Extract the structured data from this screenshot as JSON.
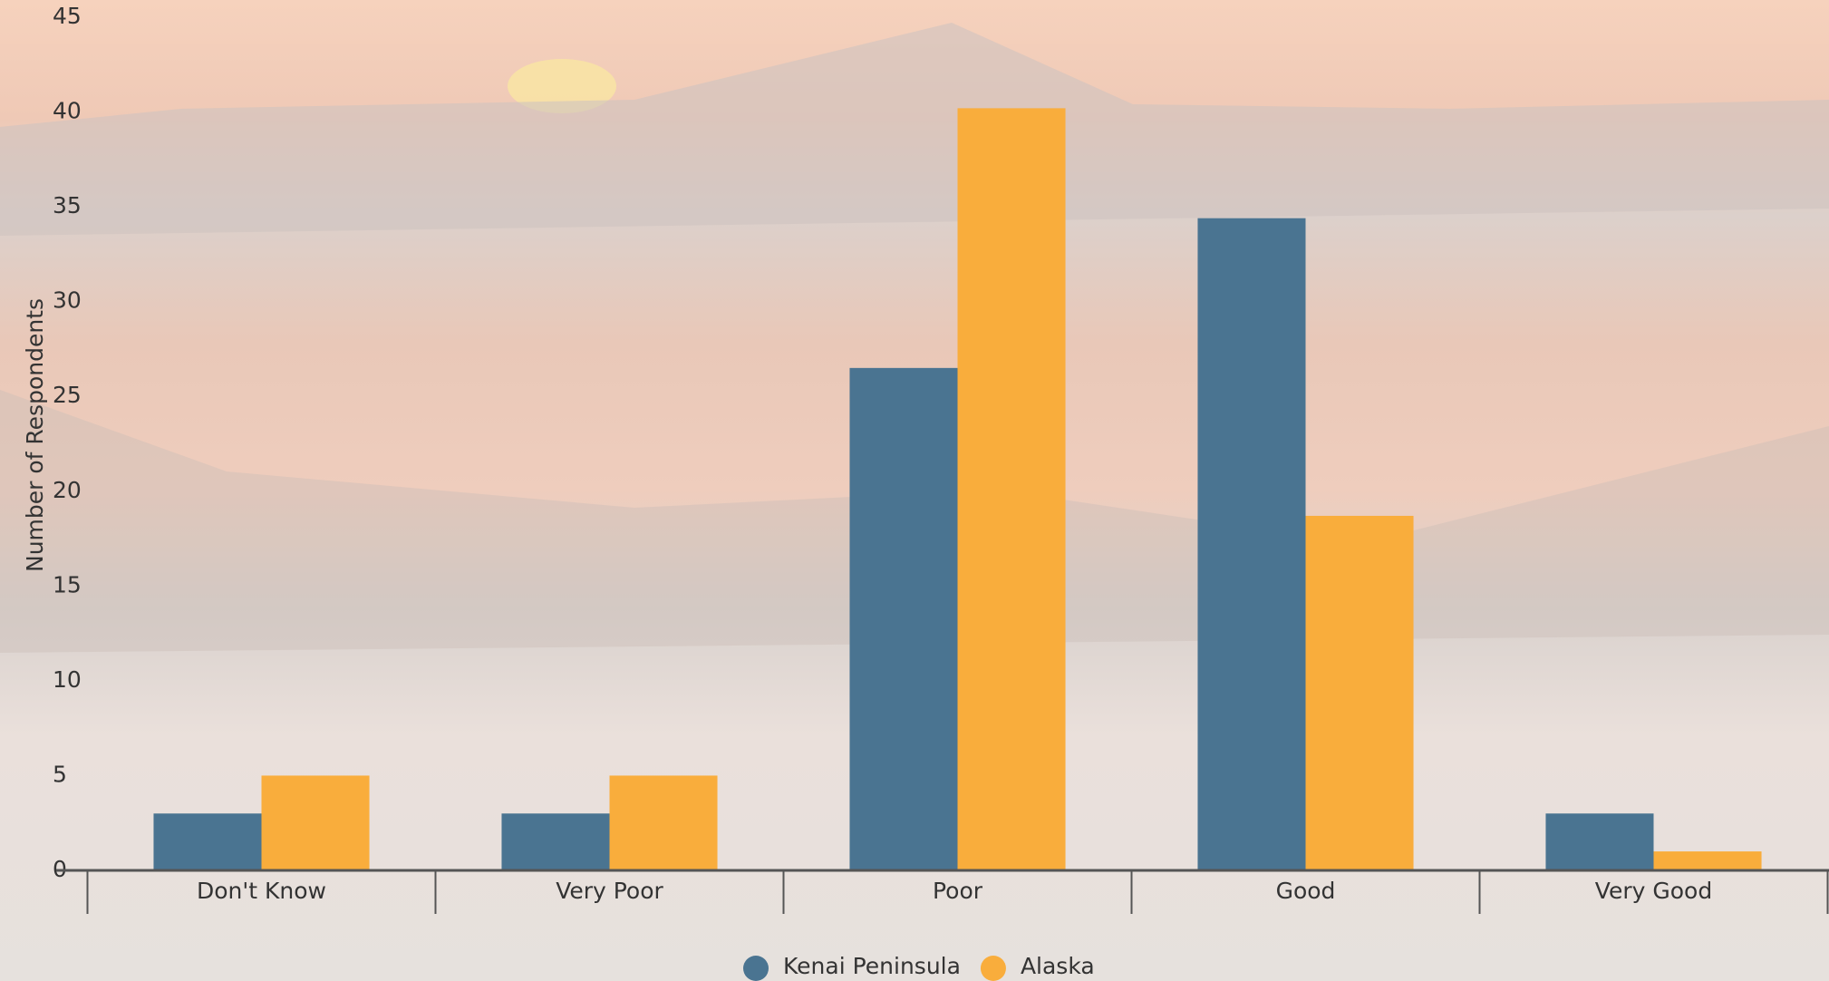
{
  "chart_data": {
    "type": "bar",
    "y_label": "Number of Respondents",
    "categories": [
      "Don't Know",
      "Very Poor",
      "Poor",
      "Good",
      "Very Good"
    ],
    "series": [
      {
        "name": "Kenai Peninsula",
        "color": "#4a7491",
        "values": [
          3,
          3,
          26.5,
          34.4,
          3
        ]
      },
      {
        "name": "Alaska",
        "color": "#f9ad3c",
        "values": [
          5,
          5,
          40.2,
          18.7,
          1
        ]
      }
    ],
    "ylim": [
      0,
      45
    ],
    "yticks": [
      0,
      5,
      10,
      15,
      20,
      25,
      30,
      35,
      40,
      45
    ]
  }
}
